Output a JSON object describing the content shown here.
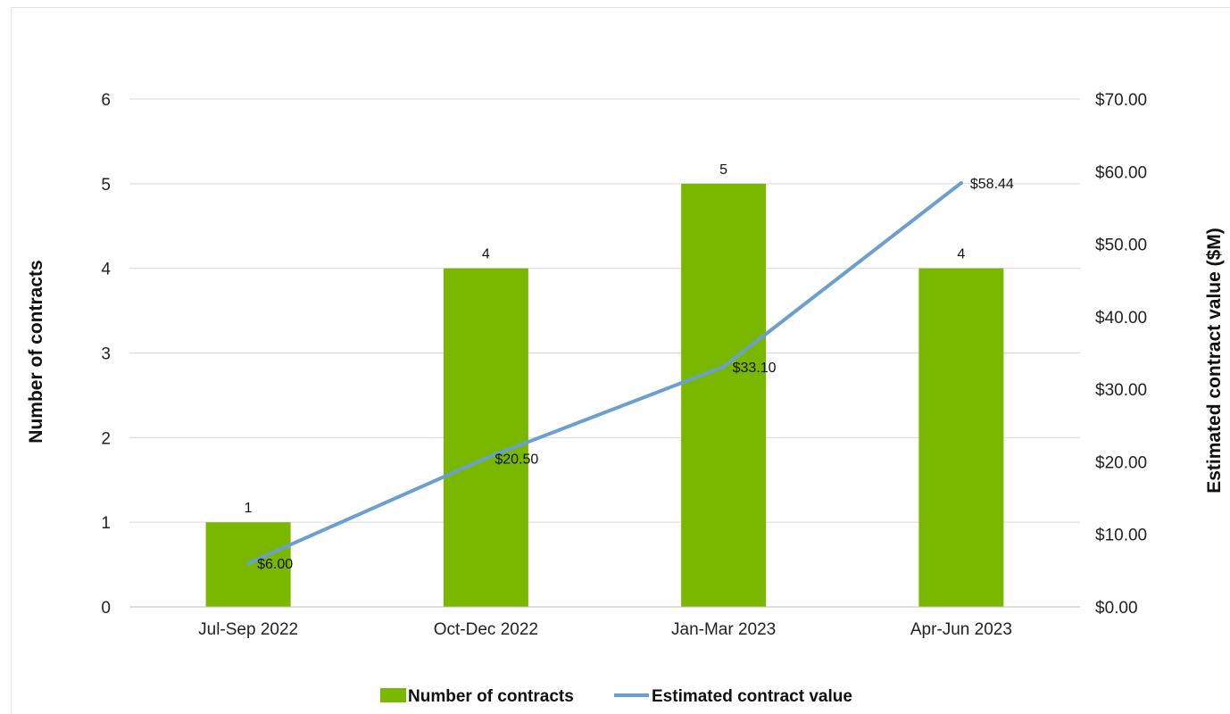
{
  "chart_data": {
    "type": "bar",
    "categories": [
      "Jul-Sep 2022",
      "Oct-Dec 2022",
      "Jan-Mar 2023",
      "Apr-Jun 2023"
    ],
    "series": [
      {
        "name": "Number of contracts",
        "type": "bar",
        "axis": "left",
        "values": [
          1,
          4,
          5,
          4
        ],
        "labels": [
          "1",
          "4",
          "5",
          "4"
        ],
        "color": "#7ab800"
      },
      {
        "name": "Estimated contract value",
        "type": "line",
        "axis": "right",
        "values": [
          6.0,
          20.5,
          33.1,
          58.44
        ],
        "labels": [
          "$6.00",
          "$20.50",
          "$33.10",
          "$58.44"
        ],
        "color": "#6a9fd0"
      }
    ],
    "ylabel": "Number of contracts",
    "y2label": "Estimated contract value ($M)",
    "ylim": [
      0,
      6
    ],
    "y2lim": [
      0,
      70
    ],
    "yticks": [
      "0",
      "1",
      "2",
      "3",
      "4",
      "5",
      "6"
    ],
    "y2ticks": [
      "$0.00",
      "$10.00",
      "$20.00",
      "$30.00",
      "$40.00",
      "$50.00",
      "$60.00",
      "$70.00"
    ],
    "grid": true,
    "legend_position": "bottom"
  }
}
